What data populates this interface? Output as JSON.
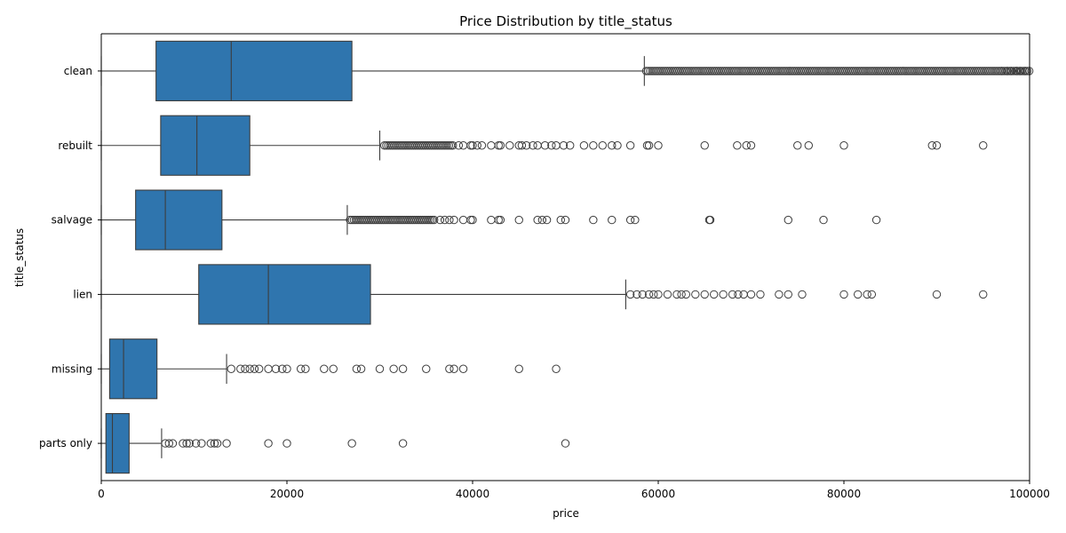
{
  "chart_data": {
    "type": "box",
    "orientation": "horizontal",
    "title": "Price Distribution by title_status",
    "xlabel": "price",
    "ylabel": "title_status",
    "xlim": [
      0,
      100000
    ],
    "xticks": [
      0,
      20000,
      40000,
      60000,
      80000,
      100000
    ],
    "xtick_labels": [
      "0",
      "20000",
      "40000",
      "60000",
      "80000",
      "100000"
    ],
    "grid": false,
    "legend": "none",
    "box_color": "#2f75ae",
    "line_color": "#3d3d3d",
    "categories": [
      "clean",
      "rebuilt",
      "salvage",
      "lien",
      "missing",
      "parts only"
    ],
    "boxes": [
      {
        "category": "clean",
        "whisker_low": 0,
        "q1": 5900,
        "median": 14000,
        "q3": 27000,
        "whisker_high": 58500,
        "outliers_dense": [
          [
            58700,
            100000
          ]
        ],
        "outliers": [
          97000,
          97600,
          98000,
          98600,
          99000,
          99500
        ]
      },
      {
        "category": "rebuilt",
        "whisker_low": 0,
        "q1": 6400,
        "median": 10300,
        "q3": 16000,
        "whisker_high": 30000,
        "outliers_dense": [
          [
            30500,
            38000
          ]
        ],
        "outliers": [
          38500,
          39000,
          39800,
          40000,
          40500,
          41000,
          42000,
          42800,
          43000,
          44000,
          45000,
          45300,
          45800,
          46500,
          47000,
          47800,
          48500,
          49000,
          49800,
          50500,
          52000,
          53000,
          54000,
          55000,
          55600,
          57000,
          58800,
          59000,
          60000,
          65000,
          68500,
          69500,
          70000,
          75000,
          76200,
          80000,
          89500,
          90000,
          95000
        ]
      },
      {
        "category": "salvage",
        "whisker_low": 0,
        "q1": 3700,
        "median": 6900,
        "q3": 13000,
        "whisker_high": 26500,
        "outliers_dense": [
          [
            26800,
            36000
          ]
        ],
        "outliers": [
          36500,
          37000,
          37500,
          38000,
          39000,
          39800,
          40000,
          42000,
          42800,
          43000,
          45000,
          47000,
          47500,
          48000,
          49500,
          50000,
          53000,
          55000,
          57000,
          57500,
          65500,
          65600,
          74000,
          77800,
          83500
        ]
      },
      {
        "category": "lien",
        "whisker_low": 0,
        "q1": 10500,
        "median": 18000,
        "q3": 29000,
        "whisker_high": 56500,
        "outliers_dense": [],
        "outliers": [
          57000,
          57700,
          58300,
          59000,
          59500,
          60000,
          61000,
          62000,
          62500,
          63000,
          64000,
          65000,
          66000,
          67000,
          68000,
          68600,
          69200,
          70000,
          71000,
          73000,
          74000,
          75500,
          80000,
          81500,
          82500,
          83000,
          90000,
          95000
        ]
      },
      {
        "category": "missing",
        "whisker_low": 0,
        "q1": 900,
        "median": 2400,
        "q3": 6000,
        "whisker_high": 13500,
        "outliers_dense": [],
        "outliers": [
          14000,
          15000,
          15500,
          16000,
          16500,
          17000,
          18000,
          18800,
          19500,
          20000,
          21500,
          22000,
          24000,
          25000,
          27500,
          28000,
          30000,
          31500,
          32500,
          35000,
          37500,
          38000,
          39000,
          45000,
          49000
        ]
      },
      {
        "category": "parts only",
        "whisker_low": 0,
        "q1": 500,
        "median": 1200,
        "q3": 3000,
        "whisker_high": 6500,
        "outliers_dense": [],
        "outliers": [
          6900,
          7300,
          7700,
          8800,
          9200,
          9500,
          10200,
          10800,
          11800,
          12200,
          12500,
          13500,
          18000,
          20000,
          27000,
          32500,
          50000
        ]
      }
    ]
  }
}
